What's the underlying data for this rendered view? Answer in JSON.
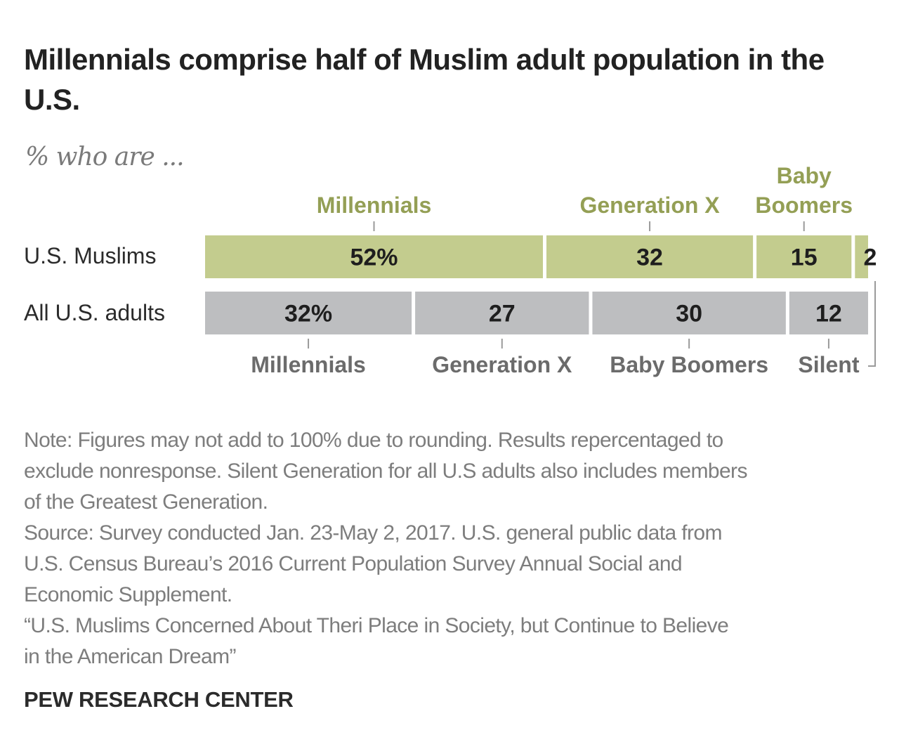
{
  "header": {
    "title": "Millennials comprise half of Muslim adult population in the U.S.",
    "subtitle": "% who are ..."
  },
  "colors": {
    "muslims_bar": "#c3cc8e",
    "muslims_label": "#949f55",
    "adults_bar": "#bdbec0",
    "adults_label": "#6b6b6b",
    "value_text": "#1e1e1e",
    "tick": "#9a9a9a"
  },
  "chart_data": {
    "type": "bar",
    "orientation": "horizontal-stacked",
    "title": "Millennials comprise half of Muslim adult population in the U.S.",
    "subtitle": "% who are ...",
    "xlim": [
      0,
      100
    ],
    "grid": false,
    "categories": [
      "U.S. Muslims",
      "All U.S. adults"
    ],
    "series_names": [
      "Millennials",
      "Generation X",
      "Baby Boomers",
      "Silent"
    ],
    "rows": [
      {
        "name": "U.S. Muslims",
        "segments": [
          {
            "name": "Millennials",
            "label": "Millennials",
            "value": 52,
            "display": "52%"
          },
          {
            "name": "Generation X",
            "label": "Generation X",
            "value": 32,
            "display": "32"
          },
          {
            "name": "Baby Boomers",
            "label": "Baby Boomers",
            "value": 15,
            "display": "15"
          },
          {
            "name": "Silent",
            "label": "",
            "value": 2,
            "display": "2"
          }
        ]
      },
      {
        "name": "All U.S. adults",
        "segments": [
          {
            "name": "Millennials",
            "label": "Millennials",
            "value": 32,
            "display": "32%"
          },
          {
            "name": "Generation X",
            "label": "Generation X",
            "value": 27,
            "display": "27"
          },
          {
            "name": "Baby Boomers",
            "label": "Baby Boomers",
            "value": 30,
            "display": "30"
          },
          {
            "name": "Silent",
            "label": "Silent",
            "value": 12,
            "display": "12"
          }
        ]
      }
    ],
    "top_labels": [
      "Millennials",
      "Generation X",
      "Baby\nBoomers"
    ],
    "bottom_labels": [
      "Millennials",
      "Generation X",
      "Baby Boomers",
      "Silent"
    ]
  },
  "notes": [
    "Note: Figures may not add to 100% due to rounding. Results repercentaged to",
    "exclude nonresponse. Silent Generation for all U.S adults also includes members",
    "of the Greatest Generation.",
    "Source: Survey conducted Jan. 23-May 2, 2017. U.S. general public data from",
    "U.S. Census Bureau’s 2016 Current Population Survey Annual Social and",
    "Economic Supplement.",
    "“U.S. Muslims Concerned About Theri Place in Society, but Continue to Believe",
    "in the American Dream”"
  ],
  "footer": {
    "brand": "PEW RESEARCH CENTER"
  }
}
